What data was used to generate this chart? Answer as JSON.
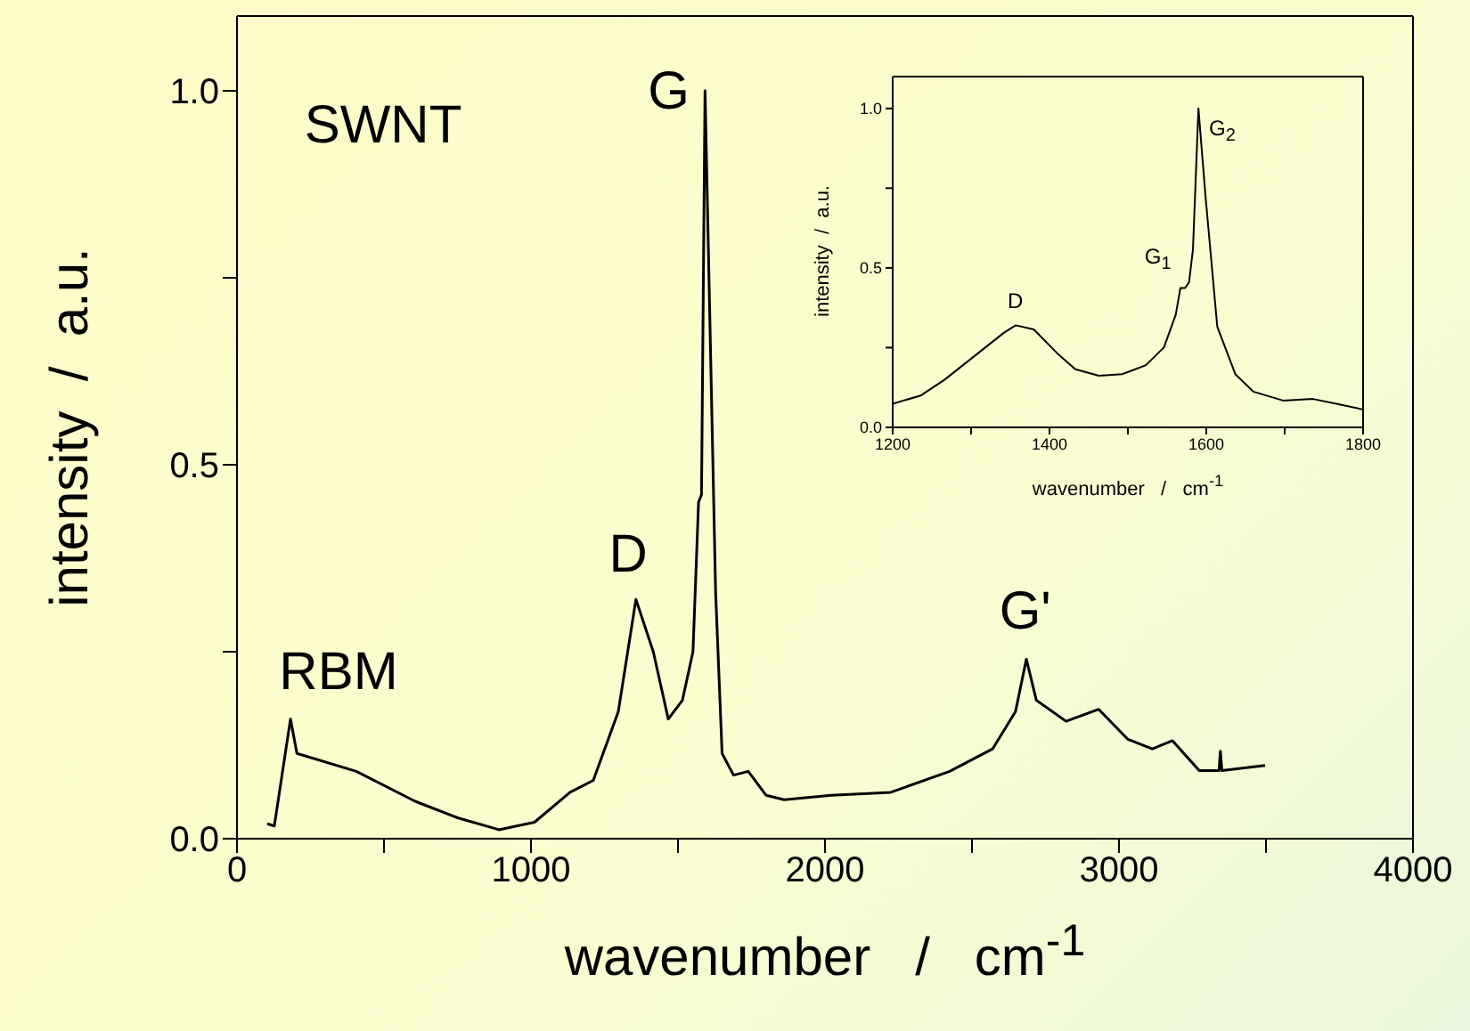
{
  "chart_data": [
    {
      "type": "line",
      "xlabel": "wavenumber   /   cm$^{-1}$",
      "ylabel": "intensity  /  a.u.",
      "x": [
        103,
        127,
        182,
        204,
        406,
        606,
        750,
        891,
        1012,
        1133,
        1212,
        1297,
        1357,
        1416,
        1467,
        1515,
        1551,
        1570,
        1580,
        1592,
        1628,
        1650,
        1689,
        1739,
        1800,
        1861,
        2022,
        2224,
        2424,
        2570,
        2648,
        2685,
        2719,
        2820,
        2931,
        3030,
        3113,
        3182,
        3273,
        3340,
        3345,
        3350,
        3497
      ],
      "series": [
        {
          "color": "#000000",
          "values": [
            0.02,
            0.017,
            0.16,
            0.114,
            0.09,
            0.05,
            0.028,
            0.012,
            0.022,
            0.062,
            0.078,
            0.17,
            0.32,
            0.25,
            0.16,
            0.185,
            0.25,
            0.45,
            0.46,
            1.0,
            0.33,
            0.114,
            0.085,
            0.09,
            0.058,
            0.052,
            0.058,
            0.062,
            0.09,
            0.12,
            0.17,
            0.24,
            0.185,
            0.157,
            0.173,
            0.133,
            0.12,
            0.131,
            0.091,
            0.091,
            0.117,
            0.091,
            0.098
          ]
        }
      ],
      "xlim": [
        0,
        4000
      ],
      "xticks": [
        0,
        {
          "value": 500,
          "label": null
        },
        1000,
        {
          "value": 1500,
          "label": null
        },
        2000,
        {
          "value": 2500,
          "label": null
        },
        3000,
        {
          "value": 3500,
          "label": null
        },
        4000
      ],
      "ylim": [
        0,
        1.1
      ],
      "yticks": [
        {
          "value": 0,
          "label": "0.0"
        },
        {
          "value": 0.25,
          "label": null
        },
        {
          "value": 0.5,
          "label": "0.5"
        },
        {
          "value": 0.75,
          "label": null
        },
        {
          "value": 1,
          "label": "1.0"
        }
      ],
      "marker": "none",
      "line_style": "solid",
      "annotations": [
        "SWNT",
        {
          "text": "RBM",
          "x": 182,
          "y": 0.16
        },
        {
          "text": "D",
          "x": 1357,
          "y": 0.32
        },
        {
          "text": "G",
          "x": 1592,
          "y": 1.0
        },
        {
          "text": "G'",
          "x": 2685,
          "y": 0.24
        }
      ]
    },
    {
      "type": "line",
      "xlabel": "wavenumber   /   cm$^{-1}$",
      "ylabel": "intensity  /  a.u.",
      "x": [
        1200,
        1236,
        1266,
        1304,
        1342,
        1357,
        1380,
        1410,
        1433,
        1463,
        1493,
        1523,
        1546,
        1561,
        1567,
        1573,
        1578,
        1583,
        1590,
        1599,
        1614,
        1637,
        1660,
        1698,
        1736,
        1766,
        1800
      ],
      "series": [
        {
          "color": "#000000",
          "values": [
            0.074,
            0.1,
            0.149,
            0.223,
            0.297,
            0.32,
            0.307,
            0.232,
            0.182,
            0.162,
            0.167,
            0.195,
            0.251,
            0.353,
            0.437,
            0.437,
            0.455,
            0.558,
            1.0,
            0.725,
            0.316,
            0.167,
            0.112,
            0.084,
            0.089,
            0.074,
            0.056
          ]
        }
      ],
      "xlim": [
        1200,
        1800
      ],
      "xticks": [
        1200,
        {
          "value": 1300,
          "label": null
        },
        1400,
        {
          "value": 1500,
          "label": null
        },
        1600,
        {
          "value": 1700,
          "label": null
        },
        1800
      ],
      "ylim": [
        0,
        1.1
      ],
      "yticks": [
        {
          "value": 0,
          "label": "0.0"
        },
        {
          "value": 0.25,
          "label": null
        },
        {
          "value": 0.5,
          "label": "0.5"
        },
        {
          "value": 0.75,
          "label": null
        },
        {
          "value": 1,
          "label": "1.0"
        }
      ],
      "marker": "none",
      "line_style": "solid",
      "annotations": [
        {
          "text": "D",
          "x": 1357,
          "y": 0.32
        },
        {
          "text": "G$_{1}$",
          "x": 1567,
          "y": 0.44
        },
        {
          "text": "G$_{2}$",
          "x": 1590,
          "y": 1.0
        }
      ]
    }
  ]
}
